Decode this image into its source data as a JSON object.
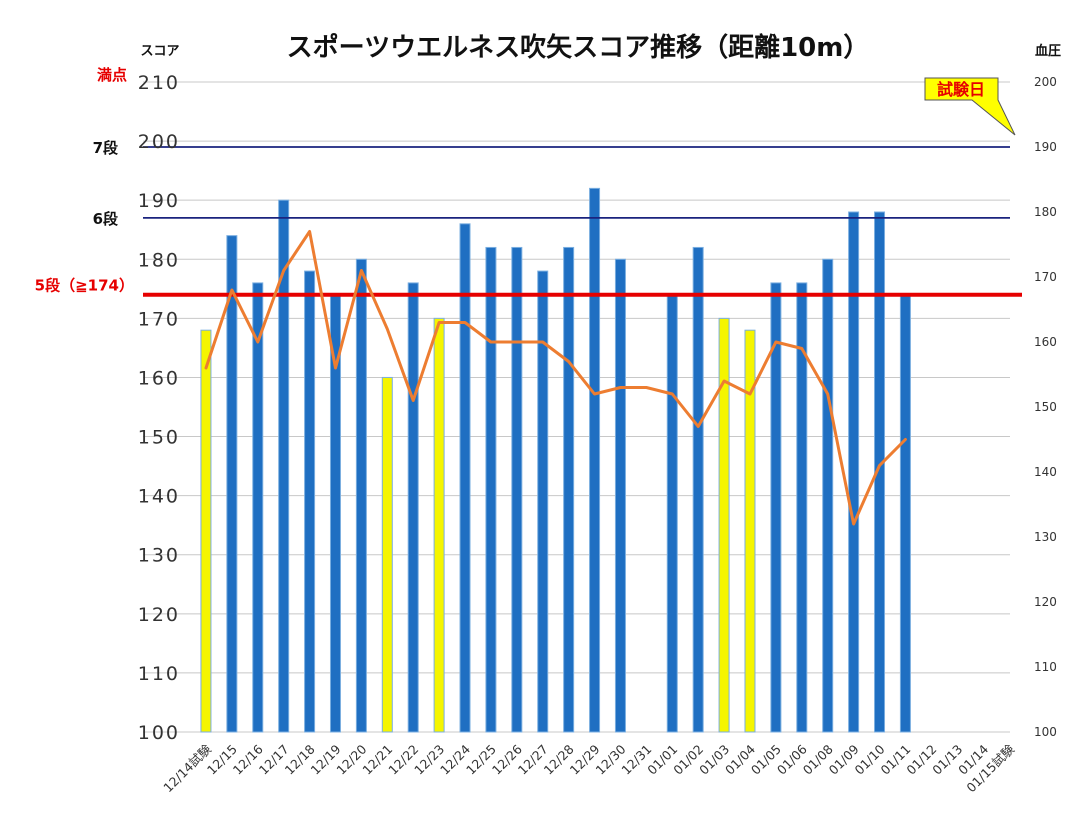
{
  "chart_data": {
    "type": "bar",
    "title": "スポーツウエルネス吹矢スコア推移（距離10m）",
    "ylabel": "スコア",
    "y2label": "血圧",
    "ylim": [
      100,
      210
    ],
    "y2lim": [
      100,
      200
    ],
    "yticks": [
      "100",
      "110",
      "120",
      "130",
      "140",
      "150",
      "160",
      "170",
      "180",
      "190",
      "200",
      "210"
    ],
    "y2ticks": [
      "100",
      "110",
      "120",
      "130",
      "140",
      "150",
      "160",
      "170",
      "180",
      "190",
      "200"
    ],
    "grid": true,
    "categories": [
      "12/14試験",
      "12/15",
      "12/16",
      "12/17",
      "12/18",
      "12/19",
      "12/20",
      "12/21",
      "12/22",
      "12/23",
      "12/24",
      "12/25",
      "12/26",
      "12/27",
      "12/28",
      "12/29",
      "12/30",
      "12/31",
      "01/01",
      "01/02",
      "01/03",
      "01/04",
      "01/05",
      "01/06",
      "01/08",
      "01/09",
      "01/10",
      "01/11",
      "01/12",
      "01/13",
      "01/14",
      "01/15試験"
    ],
    "series": [
      {
        "kind": "bar",
        "axis": "left",
        "values": [
          168,
          184,
          176,
          190,
          178,
          174,
          180,
          160,
          176,
          170,
          186,
          182,
          182,
          178,
          182,
          192,
          180,
          null,
          174,
          182,
          170,
          168,
          176,
          176,
          180,
          188,
          188,
          174,
          null,
          null,
          null,
          null
        ],
        "colors": [
          "#f5f500",
          "#1f6fc2",
          "#1f6fc2",
          "#1f6fc2",
          "#1f6fc2",
          "#1f6fc2",
          "#1f6fc2",
          "#f5f500",
          "#1f6fc2",
          "#f5f500",
          "#1f6fc2",
          "#1f6fc2",
          "#1f6fc2",
          "#1f6fc2",
          "#1f6fc2",
          "#1f6fc2",
          "#1f6fc2",
          null,
          "#1f6fc2",
          "#1f6fc2",
          "#f5f500",
          "#f5f500",
          "#1f6fc2",
          "#1f6fc2",
          "#1f6fc2",
          "#1f6fc2",
          "#1f6fc2",
          "#1f6fc2",
          null,
          null,
          null,
          null
        ]
      },
      {
        "kind": "line",
        "axis": "right",
        "color": "#ed7d31",
        "values": [
          156,
          168,
          160,
          171,
          177,
          156,
          171,
          162,
          151,
          163,
          163,
          160,
          160,
          160,
          157,
          152,
          153,
          153,
          152,
          147,
          154,
          152,
          160,
          159,
          152,
          132,
          141,
          145,
          null,
          null,
          null,
          null
        ]
      }
    ],
    "reference_lines": [
      {
        "label": "満点",
        "value": 210,
        "color": "#e60000",
        "kind": "grid"
      },
      {
        "label": "7段",
        "value": 199,
        "color": "#1a237e",
        "kind": "line"
      },
      {
        "label": "6段",
        "value": 187,
        "color": "#1a237e",
        "kind": "line"
      },
      {
        "label": "5段（≧174）",
        "value": 174,
        "color": "#e60000",
        "kind": "thick"
      }
    ],
    "annotation": {
      "text": "試験日",
      "bg": "#ffff00",
      "text_color": "#e60000",
      "points_to": "01/15試験"
    }
  }
}
